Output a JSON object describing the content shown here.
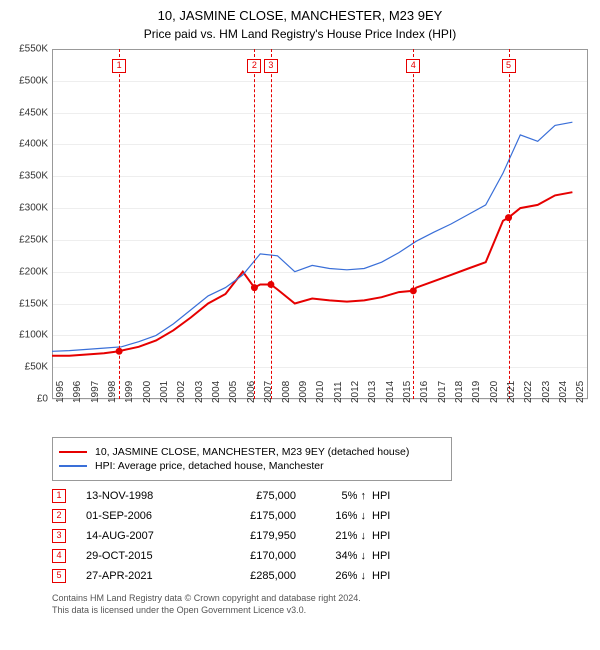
{
  "title": "10, JASMINE CLOSE, MANCHESTER, M23 9EY",
  "subtitle": "Price paid vs. HM Land Registry's House Price Index (HPI)",
  "chart": {
    "type": "line",
    "background_color": "#ffffff",
    "grid_color": "#eeeeee",
    "frame_color": "#999999",
    "ylim": [
      0,
      550000
    ],
    "ytick_step": 50000,
    "ytick_labels": [
      "£0",
      "£50K",
      "£100K",
      "£150K",
      "£200K",
      "£250K",
      "£300K",
      "£350K",
      "£400K",
      "£450K",
      "£500K",
      "£550K"
    ],
    "xlim": [
      1995,
      2025.9
    ],
    "xtick_step": 1,
    "xtick_labels": [
      "1995",
      "1996",
      "1997",
      "1998",
      "1999",
      "2000",
      "2001",
      "2002",
      "2003",
      "2004",
      "2005",
      "2006",
      "2007",
      "2008",
      "2009",
      "2010",
      "2011",
      "2012",
      "2013",
      "2014",
      "2015",
      "2016",
      "2017",
      "2018",
      "2019",
      "2020",
      "2021",
      "2022",
      "2023",
      "2024",
      "2025"
    ],
    "series": [
      {
        "name": "10, JASMINE CLOSE, MANCHESTER, M23 9EY (detached house)",
        "color": "#e60000",
        "line_width": 2,
        "x": [
          1995,
          1996,
          1997,
          1998,
          1998.87,
          1999,
          2000,
          2001,
          2002,
          2003,
          2004,
          2005,
          2006,
          2006.67,
          2007,
          2007.62,
          2008,
          2009,
          2010,
          2011,
          2012,
          2013,
          2014,
          2015,
          2015.83,
          2016,
          2017,
          2018,
          2019,
          2020,
          2021,
          2021.32,
          2022,
          2023,
          2024,
          2025
        ],
        "y": [
          68000,
          68000,
          70000,
          72000,
          75000,
          76000,
          82000,
          92000,
          108000,
          128000,
          150000,
          165000,
          200000,
          175000,
          180000,
          179950,
          172000,
          150000,
          158000,
          155000,
          153000,
          155000,
          160000,
          168000,
          170000,
          175000,
          185000,
          195000,
          205000,
          215000,
          280000,
          285000,
          300000,
          305000,
          320000,
          325000
        ],
        "markers_at": [
          1998.87,
          2006.67,
          2007.62,
          2015.83,
          2021.32
        ]
      },
      {
        "name": "HPI: Average price, detached house, Manchester",
        "color": "#3a6fd8",
        "line_width": 1.2,
        "x": [
          1995,
          1996,
          1997,
          1998,
          1999,
          2000,
          2001,
          2002,
          2003,
          2004,
          2005,
          2006,
          2007,
          2008,
          2009,
          2010,
          2011,
          2012,
          2013,
          2014,
          2015,
          2016,
          2017,
          2018,
          2019,
          2020,
          2021,
          2022,
          2023,
          2024,
          2025
        ],
        "y": [
          75000,
          76000,
          78000,
          80000,
          82000,
          90000,
          100000,
          118000,
          140000,
          162000,
          175000,
          195000,
          228000,
          225000,
          200000,
          210000,
          205000,
          203000,
          205000,
          215000,
          230000,
          248000,
          262000,
          275000,
          290000,
          305000,
          355000,
          415000,
          405000,
          430000,
          435000
        ]
      }
    ],
    "event_lines": [
      {
        "x": 1998.87,
        "color": "#e60000",
        "label": "1"
      },
      {
        "x": 2006.67,
        "color": "#e60000",
        "label": "2"
      },
      {
        "x": 2007.62,
        "color": "#e60000",
        "label": "3"
      },
      {
        "x": 2015.83,
        "color": "#e60000",
        "label": "4"
      },
      {
        "x": 2021.32,
        "color": "#e60000",
        "label": "5"
      }
    ],
    "marker_top_offset": 10,
    "label_fontsize": 10
  },
  "transactions": [
    {
      "idx": "1",
      "date": "13-NOV-1998",
      "price": "£75,000",
      "pct": "5%",
      "arrow": "↑",
      "hpi": "HPI",
      "color": "#e60000"
    },
    {
      "idx": "2",
      "date": "01-SEP-2006",
      "price": "£175,000",
      "pct": "16%",
      "arrow": "↓",
      "hpi": "HPI",
      "color": "#e60000"
    },
    {
      "idx": "3",
      "date": "14-AUG-2007",
      "price": "£179,950",
      "pct": "21%",
      "arrow": "↓",
      "hpi": "HPI",
      "color": "#e60000"
    },
    {
      "idx": "4",
      "date": "29-OCT-2015",
      "price": "£170,000",
      "pct": "34%",
      "arrow": "↓",
      "hpi": "HPI",
      "color": "#e60000"
    },
    {
      "idx": "5",
      "date": "27-APR-2021",
      "price": "£285,000",
      "pct": "26%",
      "arrow": "↓",
      "hpi": "HPI",
      "color": "#e60000"
    }
  ],
  "footer_line1": "Contains HM Land Registry data © Crown copyright and database right 2024.",
  "footer_line2": "This data is licensed under the Open Government Licence v3.0."
}
